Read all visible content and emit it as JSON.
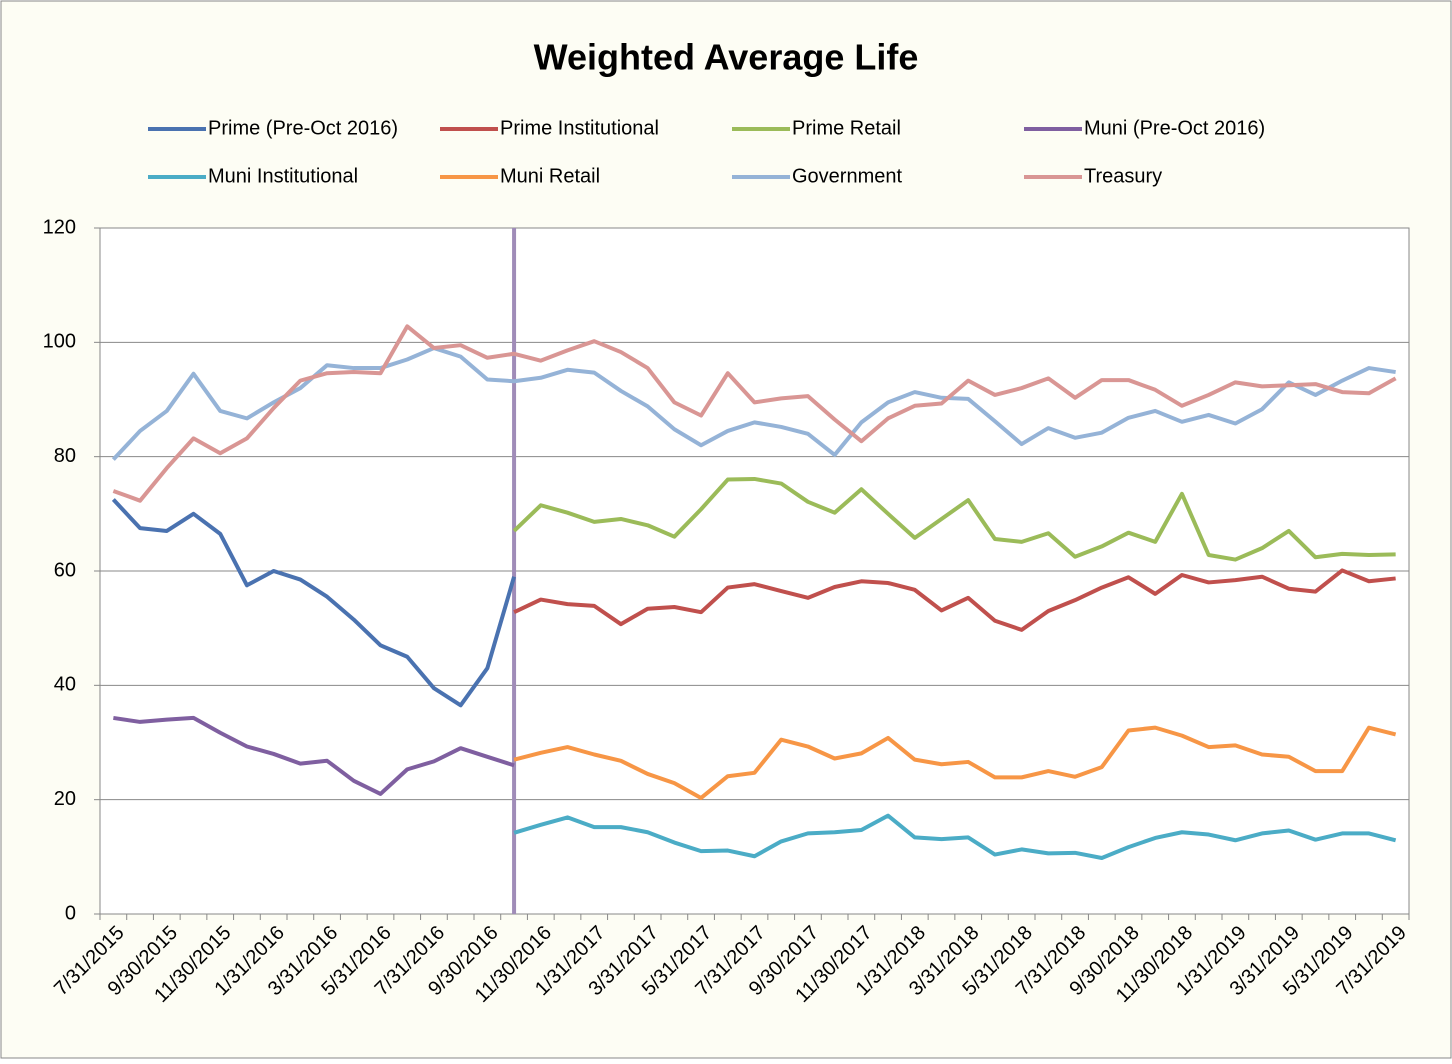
{
  "chart_data": {
    "type": "line",
    "title": "Weighted Average Life",
    "categories": [
      "7/31/2015",
      null,
      "9/30/2015",
      null,
      "11/30/2015",
      null,
      "1/31/2016",
      null,
      "3/31/2016",
      null,
      "5/31/2016",
      null,
      "7/31/2016",
      null,
      "9/30/2016",
      null,
      "11/30/2016",
      null,
      "1/31/2017",
      null,
      "3/31/2017",
      null,
      "5/31/2017",
      null,
      "7/31/2017",
      null,
      "9/30/2017",
      null,
      "11/30/2017",
      null,
      "1/31/2018",
      null,
      "3/31/2018",
      null,
      "5/31/2018",
      null,
      "7/31/2018",
      null,
      "9/30/2018",
      null,
      "11/30/2018",
      null,
      "1/31/2019",
      null,
      "3/31/2019",
      null,
      "5/31/2019",
      null,
      "7/31/2019"
    ],
    "ylim": [
      0,
      120
    ],
    "yticks": [
      0,
      20,
      40,
      60,
      80,
      100,
      120
    ],
    "grid": true,
    "series": [
      {
        "name": "Prime (Pre-Oct 2016)",
        "color": "#4a72b0",
        "values": [
          72.5,
          67.5,
          67,
          70,
          66.5,
          57.5,
          60,
          58.5,
          55.5,
          51.5,
          47,
          45,
          39.5,
          36.5,
          43,
          59,
          null,
          null,
          null,
          null,
          null,
          null,
          null,
          null,
          null,
          null,
          null,
          null,
          null,
          null,
          null,
          null,
          null,
          null,
          null,
          null,
          null,
          null,
          null,
          null,
          null,
          null,
          null,
          null,
          null,
          null,
          null,
          null,
          null
        ]
      },
      {
        "name": "Prime Institutional",
        "color": "#c0504d",
        "values": [
          null,
          null,
          null,
          null,
          null,
          null,
          null,
          null,
          null,
          null,
          null,
          null,
          null,
          null,
          null,
          52.8,
          55,
          54.2,
          53.9,
          50.7,
          53.4,
          53.7,
          52.8,
          57.1,
          57.7,
          56.5,
          55.3,
          57.2,
          58.2,
          57.9,
          56.7,
          53.1,
          55.3,
          51.3,
          49.7,
          53,
          54.9,
          57.1,
          58.9,
          56,
          59.3,
          58,
          58.4,
          59,
          56.9,
          56.4,
          60.1,
          58.2,
          58.7
        ]
      },
      {
        "name": "Prime Retail",
        "color": "#9bbb59",
        "values": [
          null,
          null,
          null,
          null,
          null,
          null,
          null,
          null,
          null,
          null,
          null,
          null,
          null,
          null,
          null,
          67,
          71.5,
          70.2,
          68.6,
          69.1,
          68,
          66,
          70.8,
          76,
          76.1,
          75.3,
          72.1,
          70.2,
          74.3,
          70,
          65.8,
          69.1,
          72.4,
          65.6,
          65.1,
          66.6,
          62.5,
          64.3,
          66.7,
          65.1,
          73.5,
          62.8,
          62,
          64,
          67,
          62.4,
          63,
          62.8,
          62.9
        ]
      },
      {
        "name": "Muni (Pre-Oct 2016)",
        "color": "#7f5fa0",
        "values": [
          34.3,
          33.6,
          34,
          34.3,
          31.7,
          29.3,
          28,
          26.3,
          26.8,
          23.3,
          21,
          25.3,
          26.7,
          29,
          27.5,
          26,
          null,
          null,
          null,
          null,
          null,
          null,
          null,
          null,
          null,
          null,
          null,
          null,
          null,
          null,
          null,
          null,
          null,
          null,
          null,
          null,
          null,
          null,
          null,
          null,
          null,
          null,
          null,
          null,
          null,
          null,
          null,
          null,
          null
        ]
      },
      {
        "name": "Muni Institutional",
        "color": "#4bacc6",
        "values": [
          null,
          null,
          null,
          null,
          null,
          null,
          null,
          null,
          null,
          null,
          null,
          null,
          null,
          null,
          null,
          14.2,
          15.6,
          16.9,
          15.2,
          15.2,
          14.3,
          12.5,
          11,
          11.1,
          10.1,
          12.7,
          14.1,
          14.3,
          14.7,
          17.2,
          13.4,
          13.1,
          13.4,
          10.4,
          11.3,
          10.6,
          10.7,
          9.8,
          11.7,
          13.3,
          14.3,
          13.9,
          12.9,
          14.1,
          14.6,
          13,
          14.1,
          14.1,
          12.9
        ]
      },
      {
        "name": "Muni Retail",
        "color": "#f79646",
        "values": [
          null,
          null,
          null,
          null,
          null,
          null,
          null,
          null,
          null,
          null,
          null,
          null,
          null,
          null,
          null,
          27,
          28.2,
          29.2,
          27.9,
          26.8,
          24.5,
          22.9,
          20.3,
          24.1,
          24.7,
          30.5,
          29.3,
          27.2,
          28.1,
          30.8,
          27,
          26.2,
          26.6,
          23.9,
          23.9,
          25,
          24,
          25.7,
          32.1,
          32.6,
          31.2,
          29.2,
          29.5,
          27.9,
          27.5,
          25,
          25,
          32.6,
          31.4
        ]
      },
      {
        "name": "Government",
        "color": "#95b3d7",
        "values": [
          79.5,
          84.5,
          88,
          94.5,
          88,
          86.7,
          89.5,
          92,
          96,
          95.5,
          95.5,
          97,
          99,
          97.5,
          93.5,
          93.2,
          93.8,
          95.2,
          94.7,
          91.5,
          88.8,
          84.8,
          82,
          84.5,
          86,
          85.2,
          84,
          80.3,
          86,
          89.5,
          91.3,
          90.3,
          90.1,
          86.2,
          82.2,
          85,
          83.3,
          84.2,
          86.8,
          88,
          86.1,
          87.3,
          85.8,
          88.3,
          93,
          90.8,
          93.3,
          95.5,
          94.8
        ]
      },
      {
        "name": "Treasury",
        "color": "#d99694",
        "values": [
          74,
          72.3,
          78,
          83.2,
          80.6,
          83.2,
          88.5,
          93.3,
          94.6,
          94.8,
          94.6,
          102.8,
          99,
          99.5,
          97.3,
          98,
          96.8,
          98.6,
          100.2,
          98.3,
          95.5,
          89.5,
          87.2,
          94.6,
          89.5,
          90.2,
          90.6,
          86.5,
          82.7,
          86.7,
          88.9,
          89.3,
          93.3,
          90.8,
          92,
          93.7,
          90.3,
          93.4,
          93.4,
          91.7,
          88.9,
          90.8,
          93,
          92.3,
          92.5,
          92.7,
          91.3,
          91.1,
          93.7
        ]
      }
    ]
  }
}
